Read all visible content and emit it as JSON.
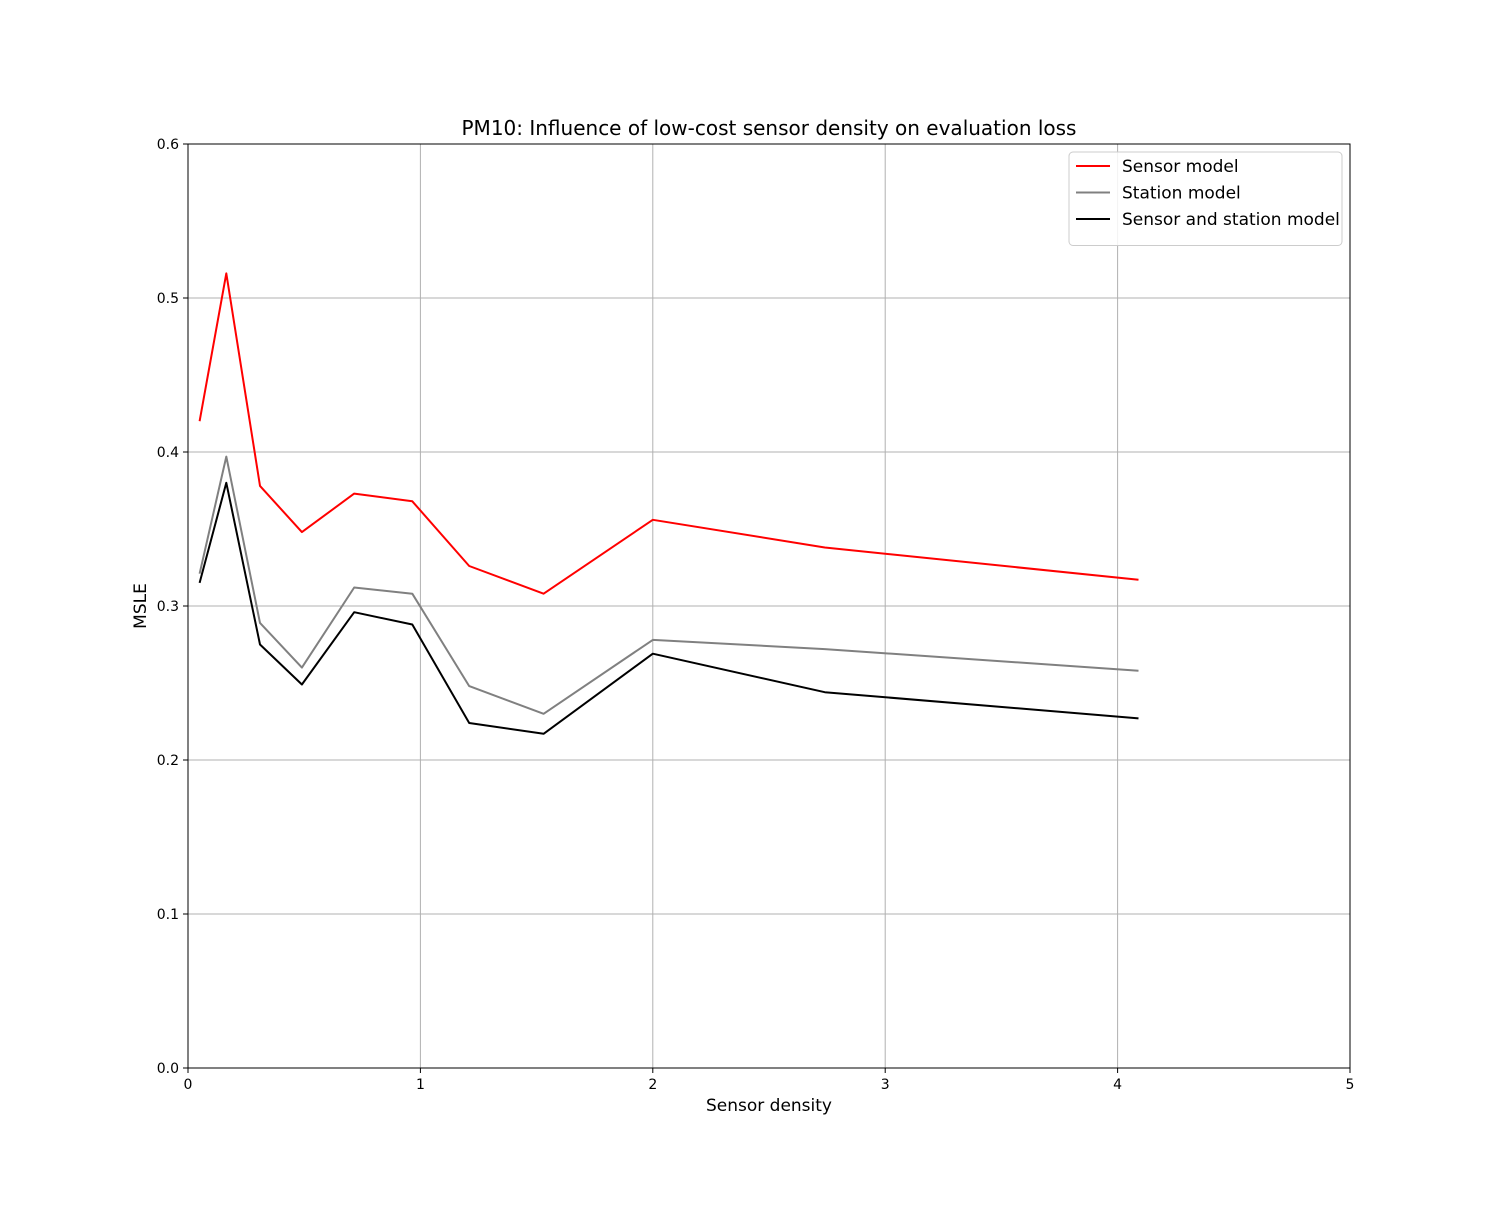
{
  "chart_data": {
    "type": "line",
    "title": "PM10: Influence of low-cost sensor density on evaluation loss",
    "xlabel": "Sensor density",
    "ylabel": "MSLE",
    "xlim": [
      0,
      5
    ],
    "ylim": [
      0,
      0.6
    ],
    "xticks": [
      "0",
      "1",
      "2",
      "3",
      "4",
      "5"
    ],
    "yticks": [
      "0.0",
      "0.1",
      "0.2",
      "0.3",
      "0.4",
      "0.5",
      "0.6"
    ],
    "grid": true,
    "legend_position": "top-right",
    "x": [
      0.05,
      0.165,
      0.31,
      0.49,
      0.715,
      0.965,
      1.21,
      1.53,
      2.0,
      2.74,
      4.09
    ],
    "series": [
      {
        "name": "Sensor model",
        "color": "#ff0000",
        "values": [
          0.42,
          0.516,
          0.378,
          0.348,
          0.373,
          0.368,
          0.326,
          0.308,
          0.356,
          0.338,
          0.317
        ]
      },
      {
        "name": "Station model",
        "color": "#808080",
        "values": [
          0.321,
          0.397,
          0.289,
          0.26,
          0.312,
          0.308,
          0.248,
          0.23,
          0.278,
          0.272,
          0.258
        ]
      },
      {
        "name": "Sensor and station model",
        "color": "#000000",
        "values": [
          0.315,
          0.38,
          0.275,
          0.249,
          0.296,
          0.288,
          0.224,
          0.217,
          0.269,
          0.244,
          0.227
        ]
      }
    ]
  }
}
